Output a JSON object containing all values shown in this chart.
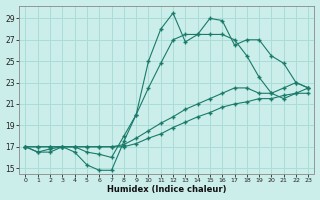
{
  "title": "",
  "xlabel": "Humidex (Indice chaleur)",
  "xlim": [
    -0.5,
    23.5
  ],
  "ylim": [
    14.5,
    30.2
  ],
  "yticks": [
    15,
    17,
    19,
    21,
    23,
    25,
    27,
    29
  ],
  "xticks": [
    0,
    1,
    2,
    3,
    4,
    5,
    6,
    7,
    8,
    9,
    10,
    11,
    12,
    13,
    14,
    15,
    16,
    17,
    18,
    19,
    20,
    21,
    22,
    23
  ],
  "bg_color": "#cceeea",
  "grid_color": "#aaddd8",
  "line_color": "#1a7a6a",
  "lines": [
    [
      17.0,
      16.5,
      16.5,
      17.0,
      16.5,
      15.3,
      14.8,
      14.8,
      17.5,
      20.0,
      25.0,
      28.0,
      29.5,
      26.8,
      27.5,
      29.0,
      28.8,
      26.5,
      27.0,
      27.0,
      25.5,
      24.8,
      23.0,
      22.5
    ],
    [
      17.0,
      16.5,
      16.8,
      17.0,
      17.0,
      16.5,
      16.3,
      16.0,
      18.0,
      20.0,
      22.5,
      24.8,
      27.0,
      27.5,
      27.5,
      27.5,
      27.5,
      27.0,
      25.5,
      23.5,
      22.0,
      21.5,
      22.0,
      22.0
    ],
    [
      17.0,
      17.0,
      17.0,
      17.0,
      17.0,
      17.0,
      17.0,
      17.0,
      17.2,
      17.8,
      18.5,
      19.2,
      19.8,
      20.5,
      21.0,
      21.5,
      22.0,
      22.5,
      22.5,
      22.0,
      22.0,
      22.5,
      23.0,
      22.5
    ],
    [
      17.0,
      17.0,
      17.0,
      17.0,
      17.0,
      17.0,
      17.0,
      17.0,
      17.0,
      17.3,
      17.8,
      18.2,
      18.8,
      19.3,
      19.8,
      20.2,
      20.7,
      21.0,
      21.2,
      21.5,
      21.5,
      21.8,
      22.0,
      22.5
    ]
  ]
}
